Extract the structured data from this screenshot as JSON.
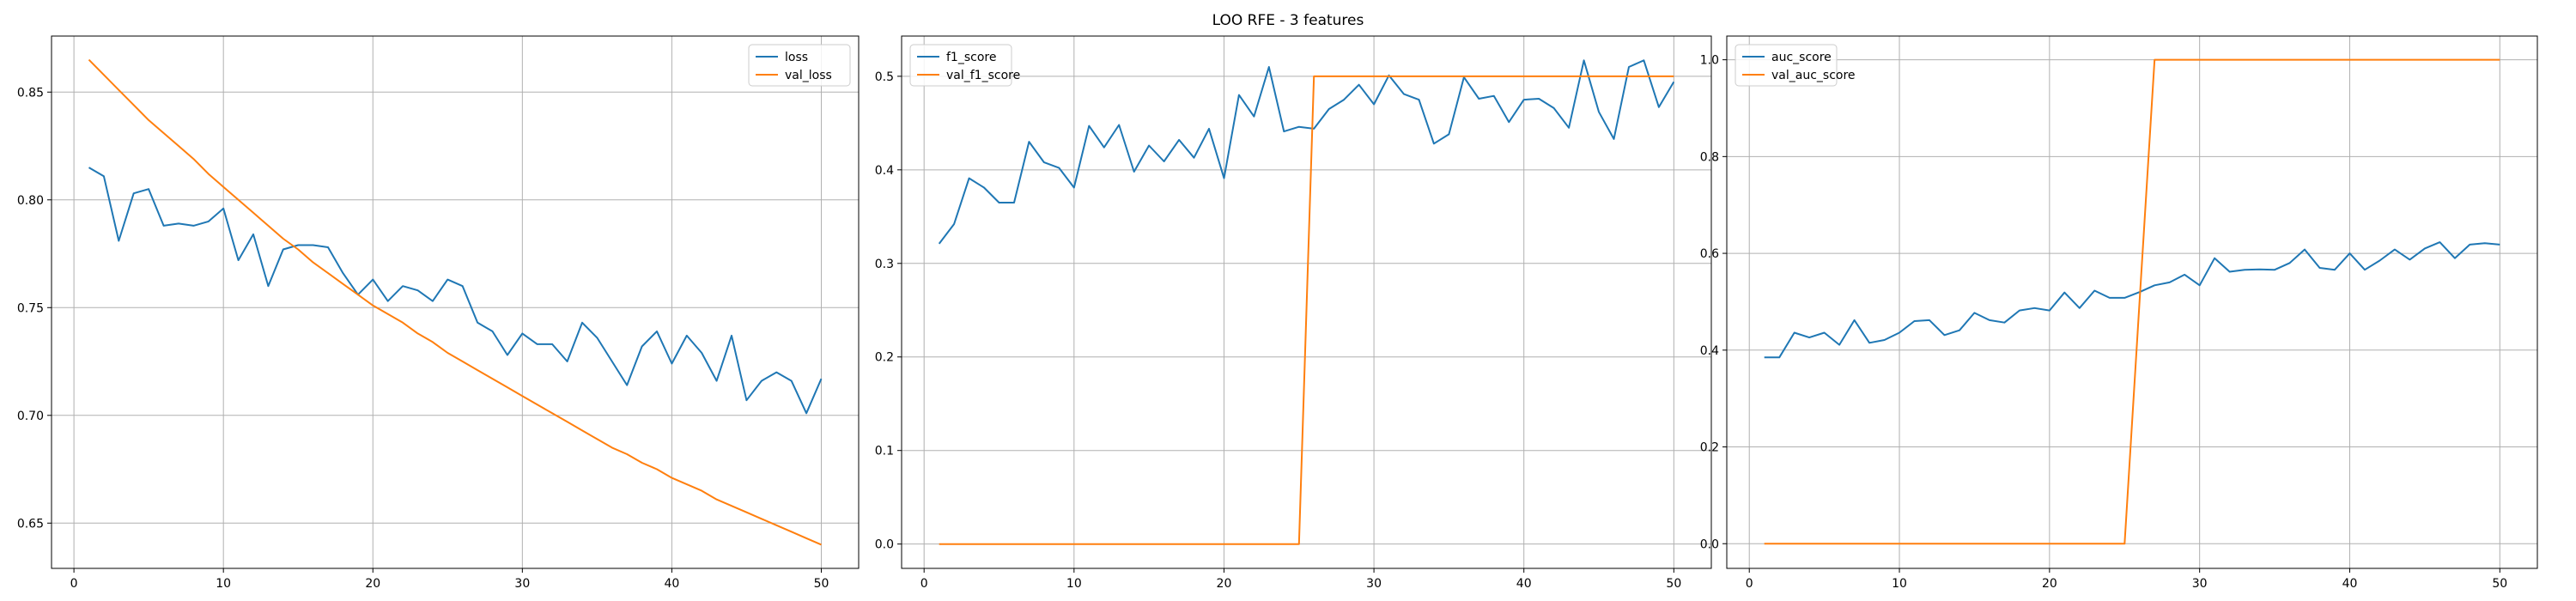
{
  "figure_title": "LOO RFE - 3 features",
  "colors": {
    "series_1": "#1f77b4",
    "series_2": "#ff7f0e",
    "grid": "#b0b0b0",
    "axes": "#000000"
  },
  "chart_data": [
    {
      "type": "line",
      "title": "",
      "xlabel": "",
      "ylabel": "",
      "grid": true,
      "legend": "top-right",
      "xlim": [
        -1.5,
        52.5
      ],
      "ylim": [
        0.629,
        0.876
      ],
      "xticks": [
        "0",
        "10",
        "20",
        "30",
        "40",
        "50"
      ],
      "yticks": [
        "0.65",
        "0.70",
        "0.75",
        "0.80",
        "0.85"
      ],
      "x": [
        1,
        2,
        3,
        4,
        5,
        6,
        7,
        8,
        9,
        10,
        11,
        12,
        13,
        14,
        15,
        16,
        17,
        18,
        19,
        20,
        21,
        22,
        23,
        24,
        25,
        26,
        27,
        28,
        29,
        30,
        31,
        32,
        33,
        34,
        35,
        36,
        37,
        38,
        39,
        40,
        41,
        42,
        43,
        44,
        45,
        46,
        47,
        48,
        49,
        50
      ],
      "series": [
        {
          "name": "loss",
          "color": "#1f77b4",
          "values": [
            0.815,
            0.811,
            0.781,
            0.803,
            0.805,
            0.788,
            0.789,
            0.788,
            0.79,
            0.796,
            0.772,
            0.784,
            0.76,
            0.777,
            0.779,
            0.779,
            0.778,
            0.766,
            0.756,
            0.763,
            0.753,
            0.76,
            0.758,
            0.753,
            0.763,
            0.76,
            0.743,
            0.739,
            0.728,
            0.738,
            0.733,
            0.733,
            0.725,
            0.743,
            0.736,
            0.725,
            0.714,
            0.732,
            0.739,
            0.724,
            0.737,
            0.729,
            0.716,
            0.737,
            0.707,
            0.716,
            0.72,
            0.716,
            0.701,
            0.717
          ]
        },
        {
          "name": "val_loss",
          "color": "#ff7f0e",
          "values": [
            0.865,
            0.858,
            0.851,
            0.844,
            0.837,
            0.831,
            0.825,
            0.819,
            0.812,
            0.806,
            0.8,
            0.794,
            0.788,
            0.782,
            0.777,
            0.771,
            0.766,
            0.761,
            0.756,
            0.751,
            0.747,
            0.743,
            0.738,
            0.734,
            0.729,
            0.725,
            0.721,
            0.717,
            0.713,
            0.709,
            0.705,
            0.701,
            0.697,
            0.693,
            0.689,
            0.685,
            0.682,
            0.678,
            0.675,
            0.671,
            0.668,
            0.665,
            0.661,
            0.658,
            0.655,
            0.652,
            0.649,
            0.646,
            0.643,
            0.64
          ]
        }
      ]
    },
    {
      "type": "line",
      "title": "",
      "xlabel": "",
      "ylabel": "",
      "grid": true,
      "legend": "top-left",
      "xlim": [
        -1.5,
        52.5
      ],
      "ylim": [
        -0.026,
        0.543
      ],
      "xticks": [
        "0",
        "10",
        "20",
        "30",
        "40",
        "50"
      ],
      "yticks": [
        "0.0",
        "0.1",
        "0.2",
        "0.3",
        "0.4",
        "0.5"
      ],
      "x": [
        1,
        2,
        3,
        4,
        5,
        6,
        7,
        8,
        9,
        10,
        11,
        12,
        13,
        14,
        15,
        16,
        17,
        18,
        19,
        20,
        21,
        22,
        23,
        24,
        25,
        26,
        27,
        28,
        29,
        30,
        31,
        32,
        33,
        34,
        35,
        36,
        37,
        38,
        39,
        40,
        41,
        42,
        43,
        44,
        45,
        46,
        47,
        48,
        49,
        50
      ],
      "series": [
        {
          "name": "f1_score",
          "color": "#1f77b4",
          "values": [
            0.321,
            0.342,
            0.391,
            0.381,
            0.365,
            0.365,
            0.43,
            0.408,
            0.402,
            0.381,
            0.447,
            0.424,
            0.448,
            0.398,
            0.426,
            0.409,
            0.432,
            0.413,
            0.444,
            0.391,
            0.48,
            0.457,
            0.51,
            0.441,
            0.446,
            0.444,
            0.465,
            0.475,
            0.491,
            0.47,
            0.501,
            0.481,
            0.475,
            0.428,
            0.438,
            0.499,
            0.476,
            0.479,
            0.451,
            0.475,
            0.476,
            0.466,
            0.445,
            0.517,
            0.462,
            0.433,
            0.51,
            0.517,
            0.467,
            0.494
          ]
        },
        {
          "name": "val_f1_score",
          "color": "#ff7f0e",
          "values": [
            0,
            0,
            0,
            0,
            0,
            0,
            0,
            0,
            0,
            0,
            0,
            0,
            0,
            0,
            0,
            0,
            0,
            0,
            0,
            0,
            0,
            0,
            0,
            0,
            0,
            0.5,
            0.5,
            0.5,
            0.5,
            0.5,
            0.5,
            0.5,
            0.5,
            0.5,
            0.5,
            0.5,
            0.5,
            0.5,
            0.5,
            0.5,
            0.5,
            0.5,
            0.5,
            0.5,
            0.5,
            0.5,
            0.5,
            0.5,
            0.5,
            0.5
          ]
        }
      ]
    },
    {
      "type": "line",
      "title": "",
      "xlabel": "",
      "ylabel": "",
      "grid": true,
      "legend": "top-left",
      "xlim": [
        -1.5,
        52.5
      ],
      "ylim": [
        -0.051,
        1.049
      ],
      "xticks": [
        "0",
        "10",
        "20",
        "30",
        "40",
        "50"
      ],
      "yticks": [
        "0.0",
        "0.2",
        "0.4",
        "0.6",
        "0.8",
        "1.0"
      ],
      "x": [
        1,
        2,
        3,
        4,
        5,
        6,
        7,
        8,
        9,
        10,
        11,
        12,
        13,
        14,
        15,
        16,
        17,
        18,
        19,
        20,
        21,
        22,
        23,
        24,
        25,
        26,
        27,
        28,
        29,
        30,
        31,
        32,
        33,
        34,
        35,
        36,
        37,
        38,
        39,
        40,
        41,
        42,
        43,
        44,
        45,
        46,
        47,
        48,
        49,
        50
      ],
      "series": [
        {
          "name": "auc_score",
          "color": "#1f77b4",
          "values": [
            0.385,
            0.385,
            0.436,
            0.426,
            0.436,
            0.411,
            0.462,
            0.415,
            0.421,
            0.436,
            0.46,
            0.462,
            0.431,
            0.441,
            0.477,
            0.462,
            0.457,
            0.482,
            0.487,
            0.482,
            0.519,
            0.487,
            0.523,
            0.508,
            0.508,
            0.52,
            0.534,
            0.54,
            0.556,
            0.534,
            0.59,
            0.562,
            0.566,
            0.567,
            0.566,
            0.58,
            0.608,
            0.57,
            0.566,
            0.6,
            0.566,
            0.585,
            0.608,
            0.587,
            0.61,
            0.623,
            0.59,
            0.618,
            0.621,
            0.618
          ]
        },
        {
          "name": "val_auc_score",
          "color": "#ff7f0e",
          "values": [
            0,
            0,
            0,
            0,
            0,
            0,
            0,
            0,
            0,
            0,
            0,
            0,
            0,
            0,
            0,
            0,
            0,
            0,
            0,
            0,
            0,
            0,
            0,
            0,
            0,
            0.5,
            1,
            1,
            1,
            1,
            1,
            1,
            1,
            1,
            1,
            1,
            1,
            1,
            1,
            1,
            1,
            1,
            1,
            1,
            1,
            1,
            1,
            1,
            1,
            1
          ]
        }
      ]
    }
  ]
}
